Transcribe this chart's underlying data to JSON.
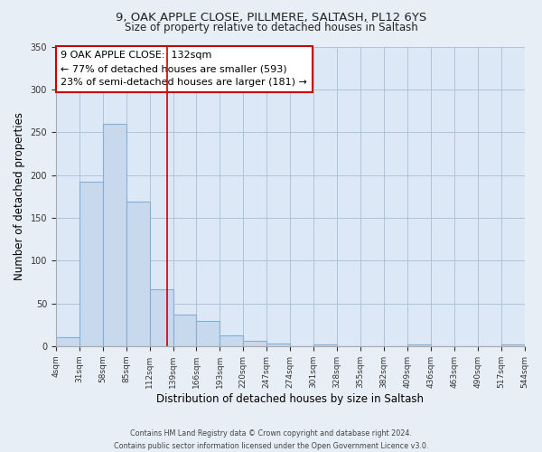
{
  "title_line1": "9, OAK APPLE CLOSE, PILLMERE, SALTASH, PL12 6YS",
  "title_line2": "Size of property relative to detached houses in Saltash",
  "xlabel": "Distribution of detached houses by size in Saltash",
  "ylabel": "Number of detached properties",
  "bin_edges": [
    4,
    31,
    58,
    85,
    112,
    139,
    166,
    193,
    220,
    247,
    274,
    301,
    328,
    355,
    382,
    409,
    436,
    463,
    490,
    517,
    544
  ],
  "bar_heights": [
    10,
    192,
    260,
    169,
    66,
    37,
    29,
    13,
    6,
    3,
    0,
    2,
    0,
    0,
    0,
    2,
    0,
    0,
    0,
    2
  ],
  "bar_color": "#c8d9ee",
  "bar_edgecolor": "#85aed4",
  "vline_x": 132,
  "vline_color": "#cc0000",
  "annotation_title": "9 OAK APPLE CLOSE:  132sqm",
  "annotation_line1": "← 77% of detached houses are smaller (593)",
  "annotation_line2": "23% of semi-detached houses are larger (181) →",
  "annotation_box_edgecolor": "#cc0000",
  "annotation_box_facecolor": "white",
  "ylim": [
    0,
    350
  ],
  "yticks": [
    0,
    50,
    100,
    150,
    200,
    250,
    300,
    350
  ],
  "tick_labels": [
    "4sqm",
    "31sqm",
    "58sqm",
    "85sqm",
    "112sqm",
    "139sqm",
    "166sqm",
    "193sqm",
    "220sqm",
    "247sqm",
    "274sqm",
    "301sqm",
    "328sqm",
    "355sqm",
    "382sqm",
    "409sqm",
    "436sqm",
    "463sqm",
    "490sqm",
    "517sqm",
    "544sqm"
  ],
  "footer_line1": "Contains HM Land Registry data © Crown copyright and database right 2024.",
  "footer_line2": "Contains public sector information licensed under the Open Government Licence v3.0.",
  "background_color": "#e8eef5",
  "plot_bg_color": "#dce8f5"
}
